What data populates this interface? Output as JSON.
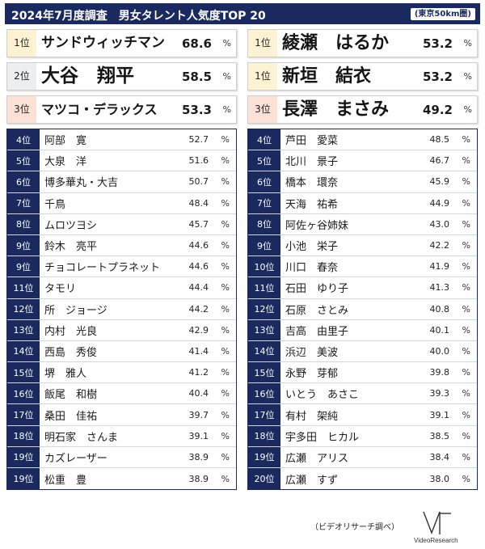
{
  "header": {
    "title": "2024年7月度調査　男女タレント人気度TOP 20",
    "note": "(東京50km圏)"
  },
  "pct_sign": "%",
  "left": {
    "top": [
      {
        "rank": "1位",
        "name": "サンドウィッチマン",
        "score": "68.6",
        "tier": "gold",
        "size": "17px"
      },
      {
        "rank": "2位",
        "name": "大谷　翔平",
        "score": "58.5",
        "tier": "silver",
        "size": "23px"
      },
      {
        "rank": "3位",
        "name": "マツコ・デラックス",
        "score": "53.3",
        "tier": "bronze",
        "size": "16px"
      }
    ],
    "rows": [
      {
        "rank": "4位",
        "name": "阿部　寛",
        "score": "52.7"
      },
      {
        "rank": "5位",
        "name": "大泉　洋",
        "score": "51.6"
      },
      {
        "rank": "6位",
        "name": "博多華丸・大吉",
        "score": "50.7"
      },
      {
        "rank": "7位",
        "name": "千鳥",
        "score": "48.4"
      },
      {
        "rank": "8位",
        "name": "ムロツヨシ",
        "score": "45.7"
      },
      {
        "rank": "9位",
        "name": "鈴木　亮平",
        "score": "44.6"
      },
      {
        "rank": "9位",
        "name": "チョコレートプラネット",
        "score": "44.6"
      },
      {
        "rank": "11位",
        "name": "タモリ",
        "score": "44.4"
      },
      {
        "rank": "12位",
        "name": "所　ジョージ",
        "score": "44.2"
      },
      {
        "rank": "13位",
        "name": "内村　光良",
        "score": "42.9"
      },
      {
        "rank": "14位",
        "name": "西島　秀俊",
        "score": "41.4"
      },
      {
        "rank": "15位",
        "name": "堺　雅人",
        "score": "41.2"
      },
      {
        "rank": "16位",
        "name": "飯尾　和樹",
        "score": "40.4"
      },
      {
        "rank": "17位",
        "name": "桑田　佳祐",
        "score": "39.7"
      },
      {
        "rank": "18位",
        "name": "明石家　さんま",
        "score": "39.1"
      },
      {
        "rank": "19位",
        "name": "カズレーザー",
        "score": "38.9"
      },
      {
        "rank": "19位",
        "name": "松重　豊",
        "score": "38.9"
      }
    ]
  },
  "right": {
    "top": [
      {
        "rank": "1位",
        "name": "綾瀬　はるか",
        "score": "53.2",
        "tier": "gold",
        "size": "22px"
      },
      {
        "rank": "1位",
        "name": "新垣　結衣",
        "score": "53.2",
        "tier": "gold",
        "size": "22px"
      },
      {
        "rank": "3位",
        "name": "長澤　まさみ",
        "score": "49.2",
        "tier": "bronze",
        "size": "22px"
      }
    ],
    "rows": [
      {
        "rank": "4位",
        "name": "芦田　愛菜",
        "score": "48.5"
      },
      {
        "rank": "5位",
        "name": "北川　景子",
        "score": "46.7"
      },
      {
        "rank": "6位",
        "name": "橋本　環奈",
        "score": "45.9"
      },
      {
        "rank": "7位",
        "name": "天海　祐希",
        "score": "44.9"
      },
      {
        "rank": "8位",
        "name": "阿佐ヶ谷姉妹",
        "score": "43.0"
      },
      {
        "rank": "9位",
        "name": "小池　栄子",
        "score": "42.2"
      },
      {
        "rank": "10位",
        "name": "川口　春奈",
        "score": "41.9"
      },
      {
        "rank": "11位",
        "name": "石田　ゆり子",
        "score": "41.3"
      },
      {
        "rank": "12位",
        "name": "石原　さとみ",
        "score": "40.8"
      },
      {
        "rank": "13位",
        "name": "吉高　由里子",
        "score": "40.1"
      },
      {
        "rank": "14位",
        "name": "浜辺　美波",
        "score": "40.0"
      },
      {
        "rank": "15位",
        "name": "永野　芽郁",
        "score": "39.8"
      },
      {
        "rank": "16位",
        "name": "いとう　あさこ",
        "score": "39.3"
      },
      {
        "rank": "17位",
        "name": "有村　架純",
        "score": "39.1"
      },
      {
        "rank": "18位",
        "name": "宇多田　ヒカル",
        "score": "38.5"
      },
      {
        "rank": "19位",
        "name": "広瀬　アリス",
        "score": "38.4"
      },
      {
        "rank": "20位",
        "name": "広瀬　すず",
        "score": "38.0"
      }
    ]
  },
  "footer": {
    "source": "（ビデオリサーチ調べ）",
    "logo_text": "VideoResearch"
  },
  "colors": {
    "navy": "#1b2a5e",
    "gold": "#fdf3d2",
    "silver": "#eceef2",
    "bronze": "#fbe1d6"
  }
}
